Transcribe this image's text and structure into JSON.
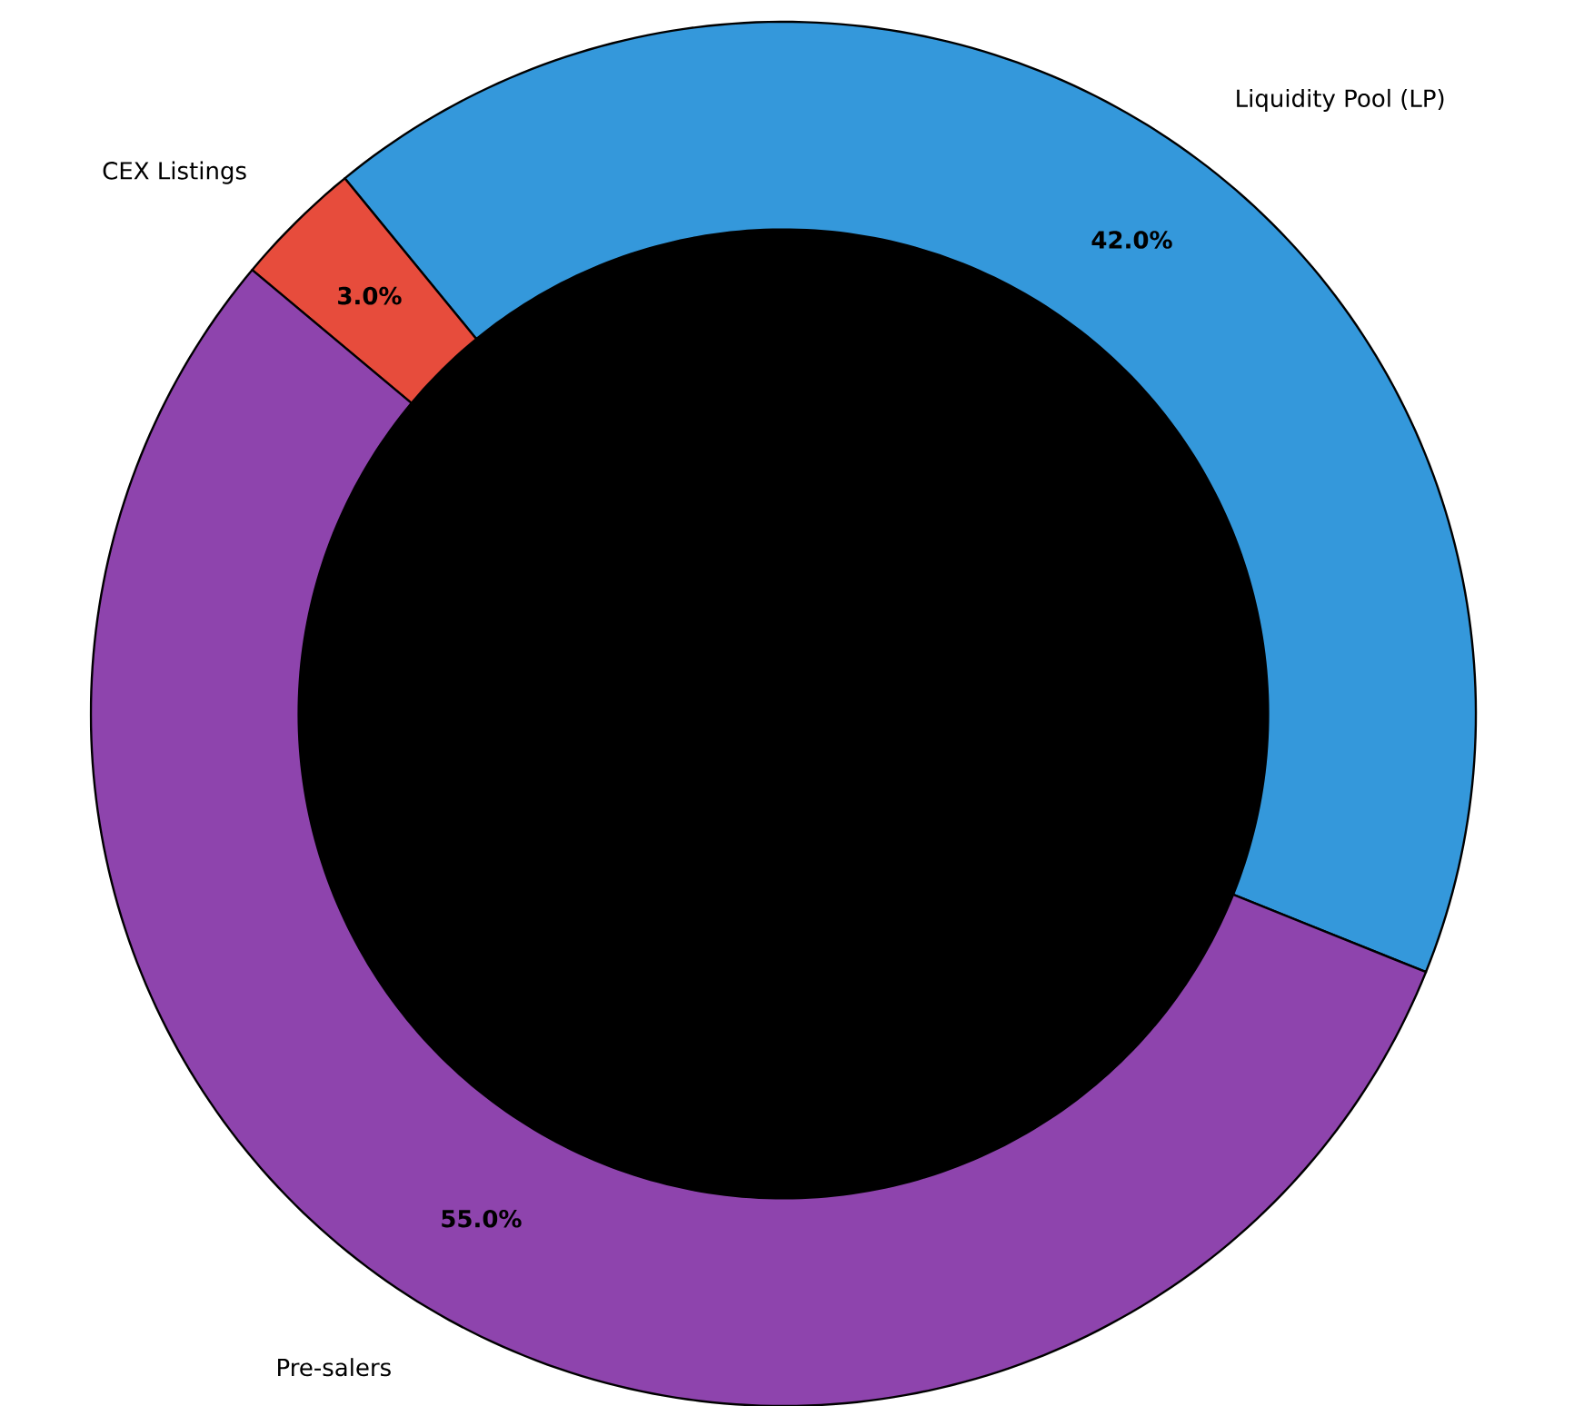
{
  "chart_data": {
    "type": "donut",
    "categories": [
      "Liquidity Pool (LP)",
      "CEX Listings",
      "Pre-salers"
    ],
    "values": [
      42,
      3,
      55
    ],
    "colors": [
      "#3498db",
      "#e74c3c",
      "#8e44ad"
    ],
    "value_labels": [
      "42.0%",
      "3.0%",
      "55.0%"
    ]
  }
}
